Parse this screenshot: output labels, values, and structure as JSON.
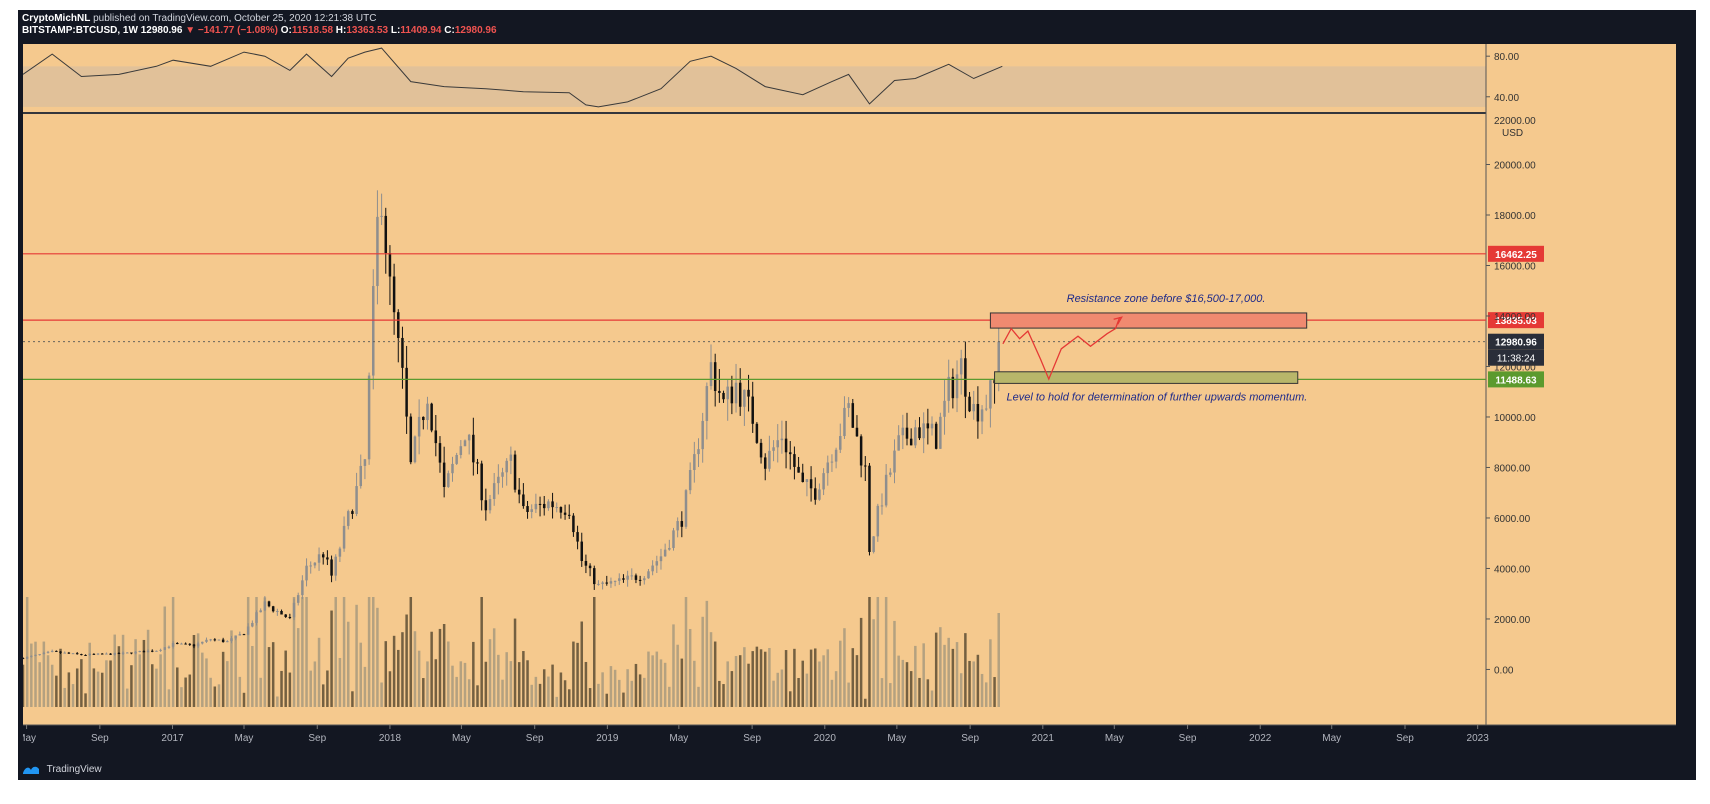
{
  "header": {
    "author": "CryptoMichNL",
    "published_text": "published on TradingView.com, October 25, 2020 12:21:38 UTC",
    "symbol": "BITSTAMP:BTCUSD, 1W",
    "last": "12980.96",
    "change_arrow": "▼",
    "change": "−141.77 (−1.08%)",
    "o_label": "O:",
    "o_value": "11518.58",
    "h_label": "H:",
    "h_value": "13363.53",
    "l_label": "L:",
    "l_value": "11409.94",
    "c_label": "C:",
    "c_value": "12980.96"
  },
  "footer": {
    "brand": "TradingView"
  },
  "colors": {
    "background": "#f5c98e",
    "frame": "#131722",
    "candle_up": "#8e8e8e",
    "candle_down": "#111111",
    "resistance_line": "#e53935",
    "support_line": "#5b9a2e",
    "projection": "#e53935",
    "annotation_text": "#1e2a8a",
    "rsi_line": "#3a3a3a"
  },
  "chart_data": {
    "type": "candlestick",
    "symbol": "BITSTAMP:BTCUSD",
    "interval": "1W",
    "price_axis": {
      "unit": "USD",
      "ylim": [
        -2200,
        22000
      ],
      "ticks": [
        0,
        2000,
        4000,
        6000,
        8000,
        10000,
        12000,
        14000,
        16000,
        18000,
        20000
      ],
      "tick_labels": [
        "0.00",
        "2000.00",
        "4000.00",
        "6000.00",
        "8000.00",
        "10000.00",
        "12000.00",
        "14000.00",
        "16000.00",
        "18000.00",
        "20000.00"
      ],
      "top_label": "22000.00",
      "unit_label": "USD"
    },
    "time_axis": {
      "range": [
        "2016-04-25",
        "2023-01-15"
      ],
      "ticks": [
        {
          "date": "2016-05-01",
          "label": "May"
        },
        {
          "date": "2016-09-01",
          "label": "Sep"
        },
        {
          "date": "2017-01-01",
          "label": "2017"
        },
        {
          "date": "2017-05-01",
          "label": "May"
        },
        {
          "date": "2017-09-01",
          "label": "Sep"
        },
        {
          "date": "2018-01-01",
          "label": "2018"
        },
        {
          "date": "2018-05-01",
          "label": "May"
        },
        {
          "date": "2018-09-01",
          "label": "Sep"
        },
        {
          "date": "2019-01-01",
          "label": "2019"
        },
        {
          "date": "2019-05-01",
          "label": "May"
        },
        {
          "date": "2019-09-01",
          "label": "Sep"
        },
        {
          "date": "2020-01-01",
          "label": "2020"
        },
        {
          "date": "2020-05-01",
          "label": "May"
        },
        {
          "date": "2020-09-01",
          "label": "Sep"
        },
        {
          "date": "2021-01-01",
          "label": "2021"
        },
        {
          "date": "2021-05-01",
          "label": "May"
        },
        {
          "date": "2021-09-01",
          "label": "Sep"
        },
        {
          "date": "2022-01-01",
          "label": "2022"
        },
        {
          "date": "2022-05-01",
          "label": "May"
        },
        {
          "date": "2022-09-01",
          "label": "Sep"
        },
        {
          "date": "2023-01-01",
          "label": "2023"
        }
      ]
    },
    "price_path": [
      [
        "2016-04-25",
        450
      ],
      [
        "2016-06-13",
        700
      ],
      [
        "2016-08-01",
        580
      ],
      [
        "2016-10-03",
        620
      ],
      [
        "2016-12-05",
        760
      ],
      [
        "2017-01-02",
        1000
      ],
      [
        "2017-02-06",
        950
      ],
      [
        "2017-03-06",
        1200
      ],
      [
        "2017-04-03",
        1100
      ],
      [
        "2017-05-01",
        1450
      ],
      [
        "2017-06-05",
        2600
      ],
      [
        "2017-07-17",
        2000
      ],
      [
        "2017-08-14",
        4000
      ],
      [
        "2017-09-11",
        4600
      ],
      [
        "2017-09-25",
        3700
      ],
      [
        "2017-10-23",
        6000
      ],
      [
        "2017-11-20",
        8200
      ],
      [
        "2017-12-11",
        17500
      ],
      [
        "2017-12-18",
        19000
      ],
      [
        "2018-01-01",
        15000
      ],
      [
        "2018-01-22",
        11500
      ],
      [
        "2018-02-05",
        8000
      ],
      [
        "2018-03-05",
        11000
      ],
      [
        "2018-04-02",
        7000
      ],
      [
        "2018-05-07",
        9500
      ],
      [
        "2018-06-11",
        6500
      ],
      [
        "2018-07-23",
        8200
      ],
      [
        "2018-08-13",
        6200
      ],
      [
        "2018-09-24",
        6600
      ],
      [
        "2018-10-29",
        6400
      ],
      [
        "2018-11-19",
        4300
      ],
      [
        "2018-12-17",
        3300
      ],
      [
        "2019-01-28",
        3500
      ],
      [
        "2019-03-04",
        3800
      ],
      [
        "2019-04-01",
        4500
      ],
      [
        "2019-05-06",
        6000
      ],
      [
        "2019-05-27",
        8200
      ],
      [
        "2019-06-24",
        12000
      ],
      [
        "2019-07-15",
        10500
      ],
      [
        "2019-08-05",
        11300
      ],
      [
        "2019-09-02",
        10000
      ],
      [
        "2019-09-23",
        8200
      ],
      [
        "2019-10-21",
        9300
      ],
      [
        "2019-11-25",
        7200
      ],
      [
        "2019-12-16",
        7100
      ],
      [
        "2020-01-13",
        8700
      ],
      [
        "2020-02-10",
        10300
      ],
      [
        "2020-03-09",
        7900
      ],
      [
        "2020-03-16",
        4800
      ],
      [
        "2020-04-06",
        6800
      ],
      [
        "2020-05-04",
        8900
      ],
      [
        "2020-06-01",
        9600
      ],
      [
        "2020-07-06",
        9200
      ],
      [
        "2020-07-27",
        11000
      ],
      [
        "2020-08-17",
        12000
      ],
      [
        "2020-09-07",
        10300
      ],
      [
        "2020-09-28",
        10600
      ],
      [
        "2020-10-19",
        11500
      ],
      [
        "2020-10-25",
        12980.96
      ]
    ],
    "volume_bars": 232,
    "volume_baseline_date_end": "2020-10-25",
    "horizontal_levels": [
      {
        "price": 16462.25,
        "label": "16462.25",
        "color": "#e53935",
        "style": "solid"
      },
      {
        "price": 13835.03,
        "label": "13835.03",
        "color": "#e53935",
        "style": "solid"
      },
      {
        "price": 12980.96,
        "label": "12980.96",
        "color": "#555555",
        "style": "dotted"
      },
      {
        "price": 11488.63,
        "label": "11488.63",
        "color": "#5b9a2e",
        "style": "solid"
      }
    ],
    "countdown_label": "11:38:24",
    "zones": [
      {
        "name": "resistance",
        "from": "2020-10-05",
        "to": "2022-03-20",
        "low": 13520,
        "high": 14120,
        "fill": "#f08a70",
        "stroke": "#333333"
      },
      {
        "name": "support",
        "from": "2020-10-12",
        "to": "2022-03-05",
        "low": 11330,
        "high": 11790,
        "fill": "#b8b66a",
        "stroke": "#333333"
      }
    ],
    "annotations": [
      {
        "text": "Resistance zone before $16,500-17,000.",
        "date": "2021-02-10",
        "price": 14550
      },
      {
        "text": "Level to hold for determination of further upwards momentum.",
        "date": "2020-11-01",
        "price": 10650
      }
    ],
    "projection_path": [
      [
        "2020-10-26",
        12900
      ],
      [
        "2020-11-09",
        13500
      ],
      [
        "2020-11-23",
        13100
      ],
      [
        "2020-12-07",
        13400
      ],
      [
        "2020-12-28",
        12300
      ],
      [
        "2021-01-11",
        11500
      ],
      [
        "2021-02-01",
        12700
      ],
      [
        "2021-03-01",
        13200
      ],
      [
        "2021-03-22",
        12800
      ],
      [
        "2021-04-19",
        13300
      ],
      [
        "2021-05-03",
        13500
      ],
      [
        "2021-05-10",
        13950
      ]
    ],
    "rsi": {
      "ticks": [
        40,
        80
      ],
      "tick_labels": [
        "40.00",
        "80.00"
      ],
      "ylim": [
        25,
        92
      ],
      "band": [
        30,
        70
      ],
      "path": [
        [
          "2016-04-25",
          62
        ],
        [
          "2016-06-13",
          82
        ],
        [
          "2016-08-01",
          60
        ],
        [
          "2016-10-03",
          62
        ],
        [
          "2016-12-05",
          70
        ],
        [
          "2017-01-02",
          76
        ],
        [
          "2017-03-06",
          70
        ],
        [
          "2017-05-01",
          84
        ],
        [
          "2017-06-05",
          80
        ],
        [
          "2017-07-17",
          66
        ],
        [
          "2017-08-14",
          82
        ],
        [
          "2017-09-25",
          60
        ],
        [
          "2017-10-23",
          78
        ],
        [
          "2017-11-20",
          84
        ],
        [
          "2017-12-18",
          88
        ],
        [
          "2018-02-05",
          55
        ],
        [
          "2018-04-02",
          50
        ],
        [
          "2018-06-11",
          48
        ],
        [
          "2018-08-13",
          45
        ],
        [
          "2018-10-29",
          44
        ],
        [
          "2018-11-26",
          32
        ],
        [
          "2018-12-17",
          30
        ],
        [
          "2019-02-04",
          35
        ],
        [
          "2019-04-01",
          48
        ],
        [
          "2019-05-20",
          75
        ],
        [
          "2019-06-24",
          80
        ],
        [
          "2019-08-05",
          68
        ],
        [
          "2019-09-23",
          50
        ],
        [
          "2019-11-25",
          42
        ],
        [
          "2020-01-13",
          55
        ],
        [
          "2020-02-10",
          62
        ],
        [
          "2020-03-16",
          33
        ],
        [
          "2020-04-27",
          56
        ],
        [
          "2020-06-01",
          58
        ],
        [
          "2020-07-27",
          72
        ],
        [
          "2020-09-07",
          58
        ],
        [
          "2020-10-25",
          70
        ]
      ]
    }
  }
}
